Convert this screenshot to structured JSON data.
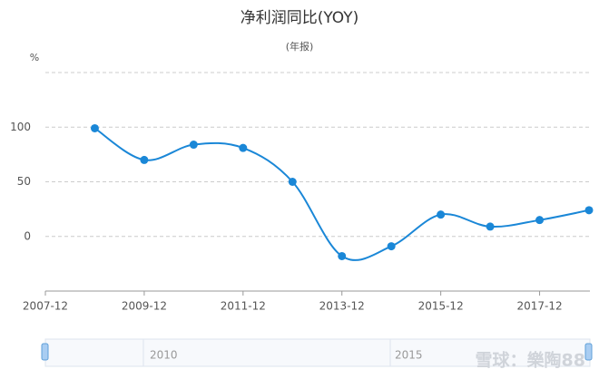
{
  "chart_data": {
    "type": "line",
    "title": "净利润同比(YOY)",
    "subtitle": "(年报)",
    "y_unit": "%",
    "x": [
      "2008-12",
      "2009-12",
      "2010-12",
      "2011-12",
      "2012-12",
      "2013-12",
      "2014-12",
      "2015-12",
      "2016-12",
      "2017-12",
      "2018-12"
    ],
    "series": [
      {
        "name": "净利润同比",
        "color": "#1a87d7",
        "values": [
          99,
          70,
          84,
          81,
          50,
          -18,
          -9,
          20,
          9,
          15,
          24
        ]
      }
    ],
    "xlim": [
      "2007-12",
      "2018-12"
    ],
    "xticks": [
      "2007-12",
      "2009-12",
      "2011-12",
      "2013-12",
      "2015-12",
      "2017-12"
    ],
    "ylim": [
      -50,
      150
    ],
    "yticks": [
      0,
      50,
      100
    ],
    "grid": true,
    "slider_labels": [
      "2010",
      "2015"
    ],
    "watermark": "雪球：樂陶88"
  }
}
